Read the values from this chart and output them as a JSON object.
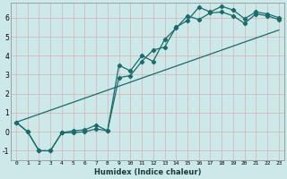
{
  "xlabel": "Humidex (Indice chaleur)",
  "xlim": [
    -0.5,
    23.5
  ],
  "ylim": [
    -1.5,
    6.8
  ],
  "xticks": [
    0,
    1,
    2,
    3,
    4,
    5,
    6,
    7,
    8,
    9,
    10,
    11,
    12,
    13,
    14,
    15,
    16,
    17,
    18,
    19,
    20,
    21,
    22,
    23
  ],
  "yticks": [
    -1,
    0,
    1,
    2,
    3,
    4,
    5,
    6
  ],
  "bg_color": "#cce8e8",
  "line_color": "#1a6b6b",
  "grid_color": "#b0d8d8",
  "series1_x": [
    0,
    1,
    2,
    3,
    4,
    5,
    6,
    7,
    8,
    9,
    10,
    11,
    12,
    13,
    14,
    15,
    16,
    17,
    18,
    19,
    20,
    21,
    22,
    23
  ],
  "series1_y": [
    0.5,
    0.0,
    -1.0,
    -1.0,
    -0.05,
    -0.05,
    0.0,
    0.15,
    0.05,
    3.5,
    3.2,
    4.0,
    3.7,
    4.85,
    5.45,
    6.1,
    5.9,
    6.25,
    6.3,
    6.1,
    5.7,
    6.2,
    6.1,
    5.9
  ],
  "series2_x": [
    0,
    1,
    2,
    3,
    4,
    5,
    6,
    7,
    8,
    9,
    10,
    11,
    12,
    13,
    14,
    15,
    16,
    17,
    18,
    19,
    20,
    21,
    22,
    23
  ],
  "series2_y": [
    0.5,
    0.0,
    -1.0,
    -1.0,
    -0.05,
    0.05,
    0.1,
    0.35,
    0.05,
    2.85,
    2.95,
    3.7,
    4.3,
    4.45,
    5.5,
    5.85,
    6.55,
    6.3,
    6.6,
    6.4,
    5.95,
    6.3,
    6.2,
    6.0
  ],
  "series3_x": [
    0,
    23
  ],
  "series3_y": [
    0.5,
    5.35
  ]
}
